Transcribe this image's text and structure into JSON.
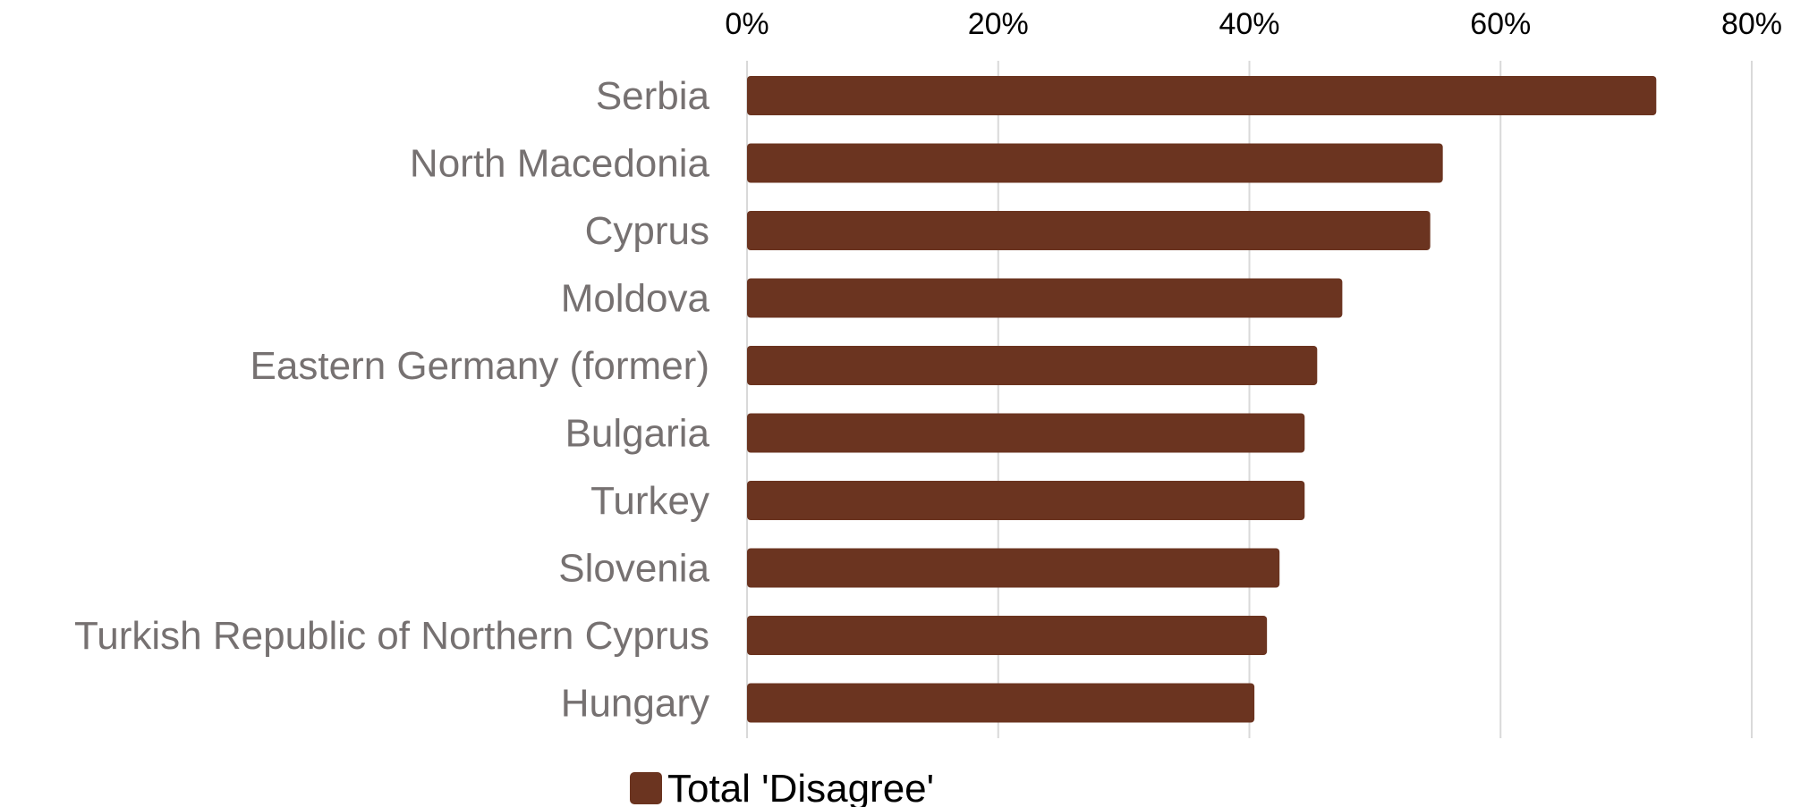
{
  "chart_data": {
    "type": "bar",
    "orientation": "horizontal",
    "categories": [
      "Serbia",
      "North Macedonia",
      "Cyprus",
      "Moldova",
      "Eastern Germany (former)",
      "Bulgaria",
      "Turkey",
      "Slovenia",
      "Turkish Republic of Northern Cyprus",
      "Hungary"
    ],
    "series": [
      {
        "name": "Total 'Disagree'",
        "color": "#6B3420",
        "values": [
          72.4,
          55.4,
          54.4,
          47.4,
          45.4,
          44.4,
          44.4,
          42.4,
          41.4,
          40.4
        ]
      }
    ],
    "x_ticks": [
      "0%",
      "20%",
      "40%",
      "60%",
      "80%"
    ],
    "x_tick_values": [
      0,
      20,
      40,
      60,
      80
    ],
    "xlim": [
      0,
      80
    ],
    "x_axis_position": "top",
    "grid": true,
    "legend_position": "bottom",
    "title": "",
    "xlabel": "",
    "ylabel": ""
  }
}
